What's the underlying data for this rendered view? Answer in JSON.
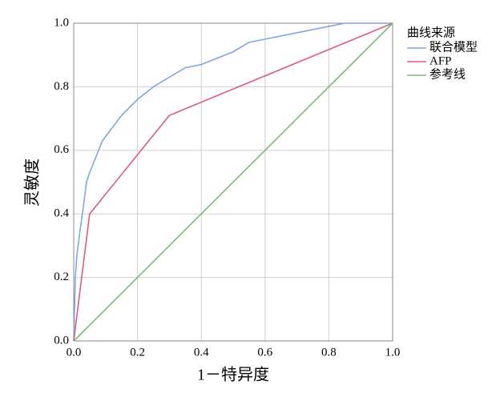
{
  "chart_data": {
    "type": "line",
    "xlabel": "1－特异度",
    "ylabel": "灵敏度",
    "legend_title": "曲线来源",
    "legend": "right",
    "grid": true,
    "xlim": [
      0,
      1
    ],
    "ylim": [
      0,
      1
    ],
    "xticks": [
      {
        "value": 0,
        "label": "0.0"
      },
      0.2,
      0.4,
      0.6,
      0.8,
      {
        "value": 1,
        "label": "1.0"
      }
    ],
    "yticks": [
      {
        "value": 0,
        "label": "0.0"
      },
      0.2,
      0.4,
      0.6,
      0.8,
      {
        "value": 1,
        "label": "1.0"
      }
    ],
    "series": [
      {
        "name": "联合模型",
        "color": "#7ea6e0",
        "x": [
          0,
          0.005,
          0.01,
          0.02,
          0.03,
          0.04,
          0.05,
          0.07,
          0.09,
          0.12,
          0.15,
          0.2,
          0.25,
          0.3,
          0.35,
          0.4,
          0.45,
          0.5,
          0.55,
          0.6,
          0.7,
          0.8,
          0.85,
          1
        ],
        "values": [
          0,
          0.2,
          0.27,
          0.35,
          0.42,
          0.5,
          0.53,
          0.58,
          0.63,
          0.67,
          0.71,
          0.76,
          0.8,
          0.83,
          0.86,
          0.87,
          0.89,
          0.91,
          0.94,
          0.95,
          0.97,
          0.99,
          1,
          1
        ]
      },
      {
        "name": "AFP",
        "color": "#e05a7a",
        "x": [
          0,
          0.05,
          0.3,
          1
        ],
        "values": [
          0,
          0.4,
          0.71,
          1
        ]
      },
      {
        "name": "参考线",
        "color": "#7cb87c",
        "x": [
          0,
          1
        ],
        "values": [
          0,
          1
        ]
      }
    ]
  }
}
